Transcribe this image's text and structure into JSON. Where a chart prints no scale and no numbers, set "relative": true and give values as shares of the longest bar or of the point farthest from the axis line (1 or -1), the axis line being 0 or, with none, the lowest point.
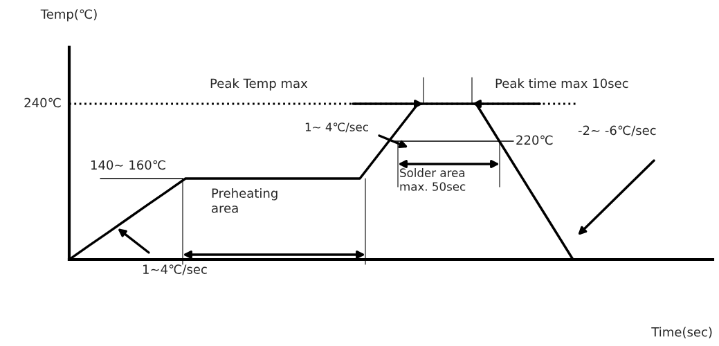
{
  "chart_data": {
    "type": "line",
    "relative": true,
    "categories": [
      null,
      null,
      null,
      null,
      null,
      null,
      null,
      null,
      null,
      null,
      null,
      null,
      null,
      null,
      null,
      null,
      null,
      null,
      null,
      null,
      null,
      null,
      null,
      null,
      null,
      null,
      null
    ],
    "series": [
      {
        "color": "#000000",
        "values": [
          0,
          0.087,
          0.173,
          0.26,
          0.347,
          0.433,
          0.52,
          0.52,
          0.52,
          0.52,
          0.52,
          0.52,
          0.52,
          0.52,
          0.52,
          0.52,
          0.68,
          0.84,
          1,
          1,
          1,
          1,
          0.8,
          0.6,
          0.4,
          0.2,
          0
        ]
      }
    ],
    "ref_lines": [
      {
        "axis": "y",
        "value": 1,
        "label": "240℃",
        "line_style": "dotted",
        "color": "#000000"
      }
    ],
    "annotations": [
      "Peak Temp max",
      "Peak time max 10sec",
      "1~ 4℃/sec",
      "220℃",
      "-2~ -6℃/sec",
      "140~ 160℃",
      "Preheating\narea",
      "Solder area\nmax. 50sec",
      "1~4℃/sec",
      "Temp(℃)",
      "Time(sec)"
    ]
  }
}
